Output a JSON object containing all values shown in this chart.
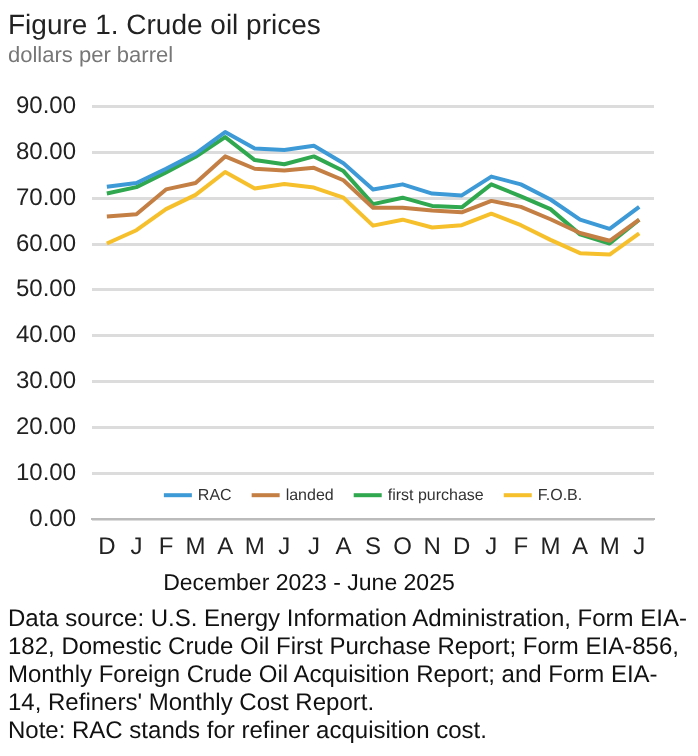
{
  "chart_data": {
    "type": "line",
    "title": "Figure 1. Crude oil prices",
    "subtitle": "dollars per barrel",
    "xlabel": "December 2023 - June 2025",
    "categories": [
      "D",
      "J",
      "F",
      "M",
      "A",
      "M",
      "J",
      "J",
      "A",
      "S",
      "O",
      "N",
      "D",
      "J",
      "F",
      "M",
      "A",
      "M",
      "J"
    ],
    "series": [
      {
        "name": "RAC",
        "color": "#3d9ad6",
        "values": [
          72.5,
          73.3,
          76.4,
          79.7,
          84.4,
          80.8,
          80.5,
          81.4,
          77.6,
          71.9,
          73,
          71,
          70.6,
          74.7,
          73,
          69.7,
          65.3,
          63.3,
          68.1
        ]
      },
      {
        "name": "landed",
        "color": "#c47f45",
        "values": [
          66,
          66.5,
          71.9,
          73.3,
          79.1,
          76.4,
          76,
          76.6,
          73.9,
          67.9,
          67.9,
          67.3,
          66.9,
          69.4,
          68.1,
          65.4,
          62.4,
          60.7,
          65.3
        ]
      },
      {
        "name": "first purchase",
        "color": "#2fa84f",
        "values": [
          71,
          72.4,
          75.6,
          79,
          83.3,
          78.3,
          77.4,
          79.1,
          75.9,
          68.7,
          70.1,
          68.3,
          68,
          73,
          70.4,
          67.6,
          62.1,
          60.1,
          65.3
        ]
      },
      {
        "name": "F.O.B.",
        "color": "#f6c02c",
        "values": [
          60.1,
          63,
          67.6,
          70.7,
          75.7,
          72.1,
          73.1,
          72.3,
          70.1,
          64,
          65.3,
          63.6,
          64.1,
          66.6,
          64.1,
          60.9,
          58,
          57.7,
          62.3
        ]
      }
    ],
    "ylim": [
      0,
      90
    ],
    "yticks": [
      {
        "value": 0,
        "label": "0.00"
      },
      {
        "value": 10,
        "label": "10.00"
      },
      {
        "value": 20,
        "label": "20.00"
      },
      {
        "value": 30,
        "label": "30.00"
      },
      {
        "value": 40,
        "label": "40.00"
      },
      {
        "value": 50,
        "label": "50.00"
      },
      {
        "value": 60,
        "label": "60.00"
      },
      {
        "value": 70,
        "label": "70.00"
      },
      {
        "value": 80,
        "label": "80.00"
      },
      {
        "value": 90,
        "label": "90.00"
      }
    ],
    "grid": "y",
    "legend": "bottom",
    "marker": "none",
    "line_style": "solid",
    "annotations": [
      "Data source: U.S. Energy Information Administration, Form EIA-182, Domestic Crude Oil First Purchase Report; Form EIA-856, Monthly Foreign Crude Oil Acquisition Report; and Form EIA-14, Refiners' Monthly Cost Report.",
      "Note: RAC stands for refiner acquisition cost."
    ]
  }
}
